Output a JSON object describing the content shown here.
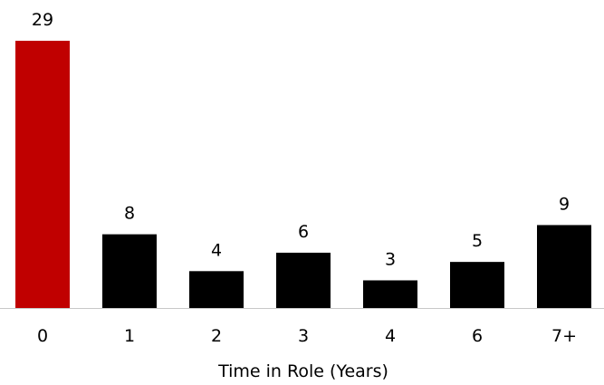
{
  "chart_data": {
    "type": "bar",
    "categories": [
      "0",
      "1",
      "2",
      "3",
      "4",
      "6",
      "7+"
    ],
    "values": [
      29,
      8,
      4,
      6,
      3,
      5,
      9
    ],
    "xlabel": "Time in Role (Years)",
    "ylabel": "",
    "ylim": [
      0,
      29
    ],
    "grid": false,
    "colors": {
      "highlight": "#c00000",
      "default": "#000000",
      "axis": "#c8c8c8"
    },
    "highlight_index": 0
  }
}
